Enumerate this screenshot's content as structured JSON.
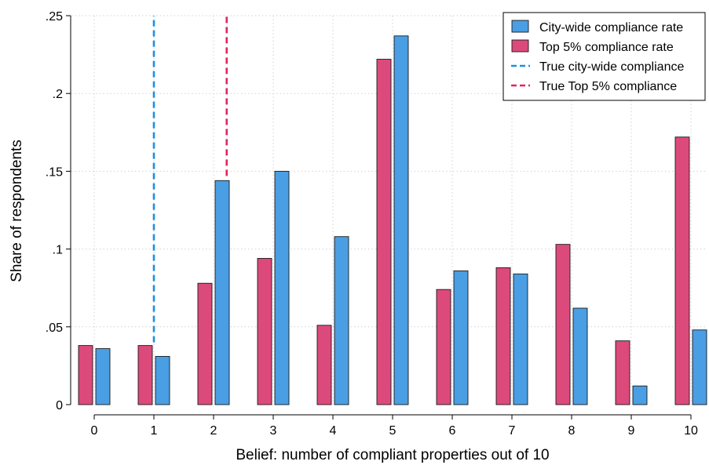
{
  "chart_data": {
    "type": "bar",
    "xlabel": "Belief: number of compliant properties out of 10",
    "ylabel": "Share of respondents",
    "categories": [
      "0",
      "1",
      "2",
      "3",
      "4",
      "5",
      "6",
      "7",
      "8",
      "9",
      "10"
    ],
    "x": [
      0,
      1,
      2,
      3,
      4,
      5,
      6,
      7,
      8,
      9,
      10
    ],
    "ylim": [
      0,
      0.25
    ],
    "yticks": [
      0,
      0.05,
      0.1,
      0.15,
      0.2,
      0.25
    ],
    "ytick_labels": [
      "0",
      ".05",
      ".1",
      ".15",
      ".2",
      ".25"
    ],
    "grid": true,
    "legend_position": "top-right",
    "series": [
      {
        "name": "City-wide compliance rate",
        "color": "#4a9ee3",
        "values": [
          0.036,
          0.031,
          0.144,
          0.15,
          0.108,
          0.237,
          0.086,
          0.084,
          0.062,
          0.012,
          0.048
        ]
      },
      {
        "name": "Top 5% compliance rate",
        "color": "#dc4a7b",
        "values": [
          0.038,
          0.038,
          0.078,
          0.094,
          0.051,
          0.222,
          0.074,
          0.088,
          0.103,
          0.041,
          0.172
        ]
      }
    ],
    "reference_lines": [
      {
        "name": "True city-wide compliance",
        "color": "#1f8fdf",
        "x": 1,
        "y_from": 0.04,
        "y_to": 0.25
      },
      {
        "name": "True Top 5% compliance",
        "color": "#e0265e",
        "x": 2.22,
        "y_from": 0.147,
        "y_to": 0.25
      }
    ],
    "legend": [
      {
        "label": "City-wide compliance rate",
        "kind": "bar",
        "color": "#4a9ee3"
      },
      {
        "label": "Top 5% compliance rate",
        "kind": "bar",
        "color": "#dc4a7b"
      },
      {
        "label": "True city-wide compliance",
        "kind": "dash",
        "color": "#1f8fdf"
      },
      {
        "label": "True Top 5% compliance",
        "kind": "dash",
        "color": "#e0265e"
      }
    ]
  }
}
